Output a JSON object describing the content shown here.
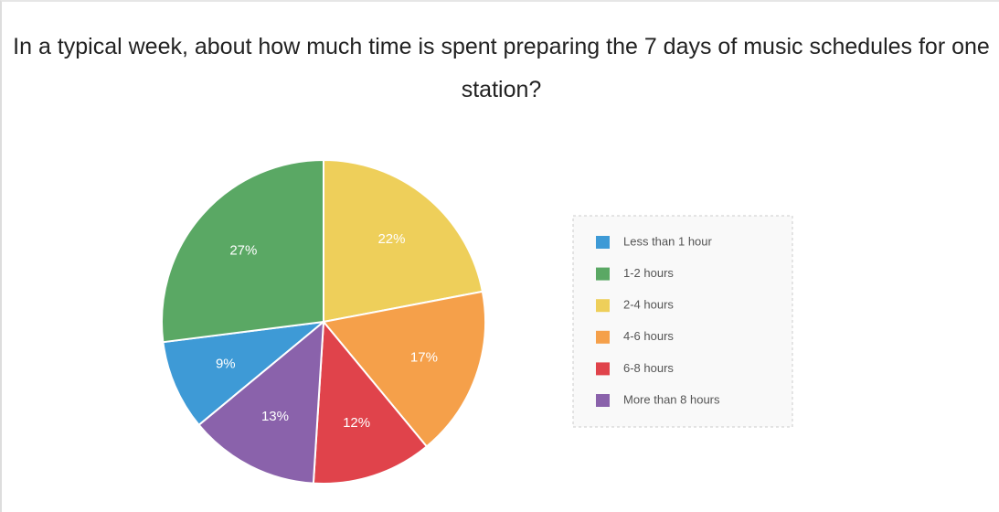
{
  "chart_data": {
    "type": "pie",
    "title": "In a typical week, about how much time is spent preparing the 7 days of music schedules for one station?",
    "categories": [
      "Less than 1 hour",
      "1-2 hours",
      "2-4 hours",
      "4-6 hours",
      "6-8 hours",
      "More than 8 hours"
    ],
    "values": [
      9,
      27,
      22,
      17,
      12,
      13
    ],
    "value_labels": [
      "9%",
      "27%",
      "22%",
      "17%",
      "12%",
      "13%"
    ],
    "colors": [
      "#3e9ad6",
      "#5aa864",
      "#eecf5a",
      "#f5a04a",
      "#e0434b",
      "#8a62ab"
    ],
    "legend": "right"
  }
}
